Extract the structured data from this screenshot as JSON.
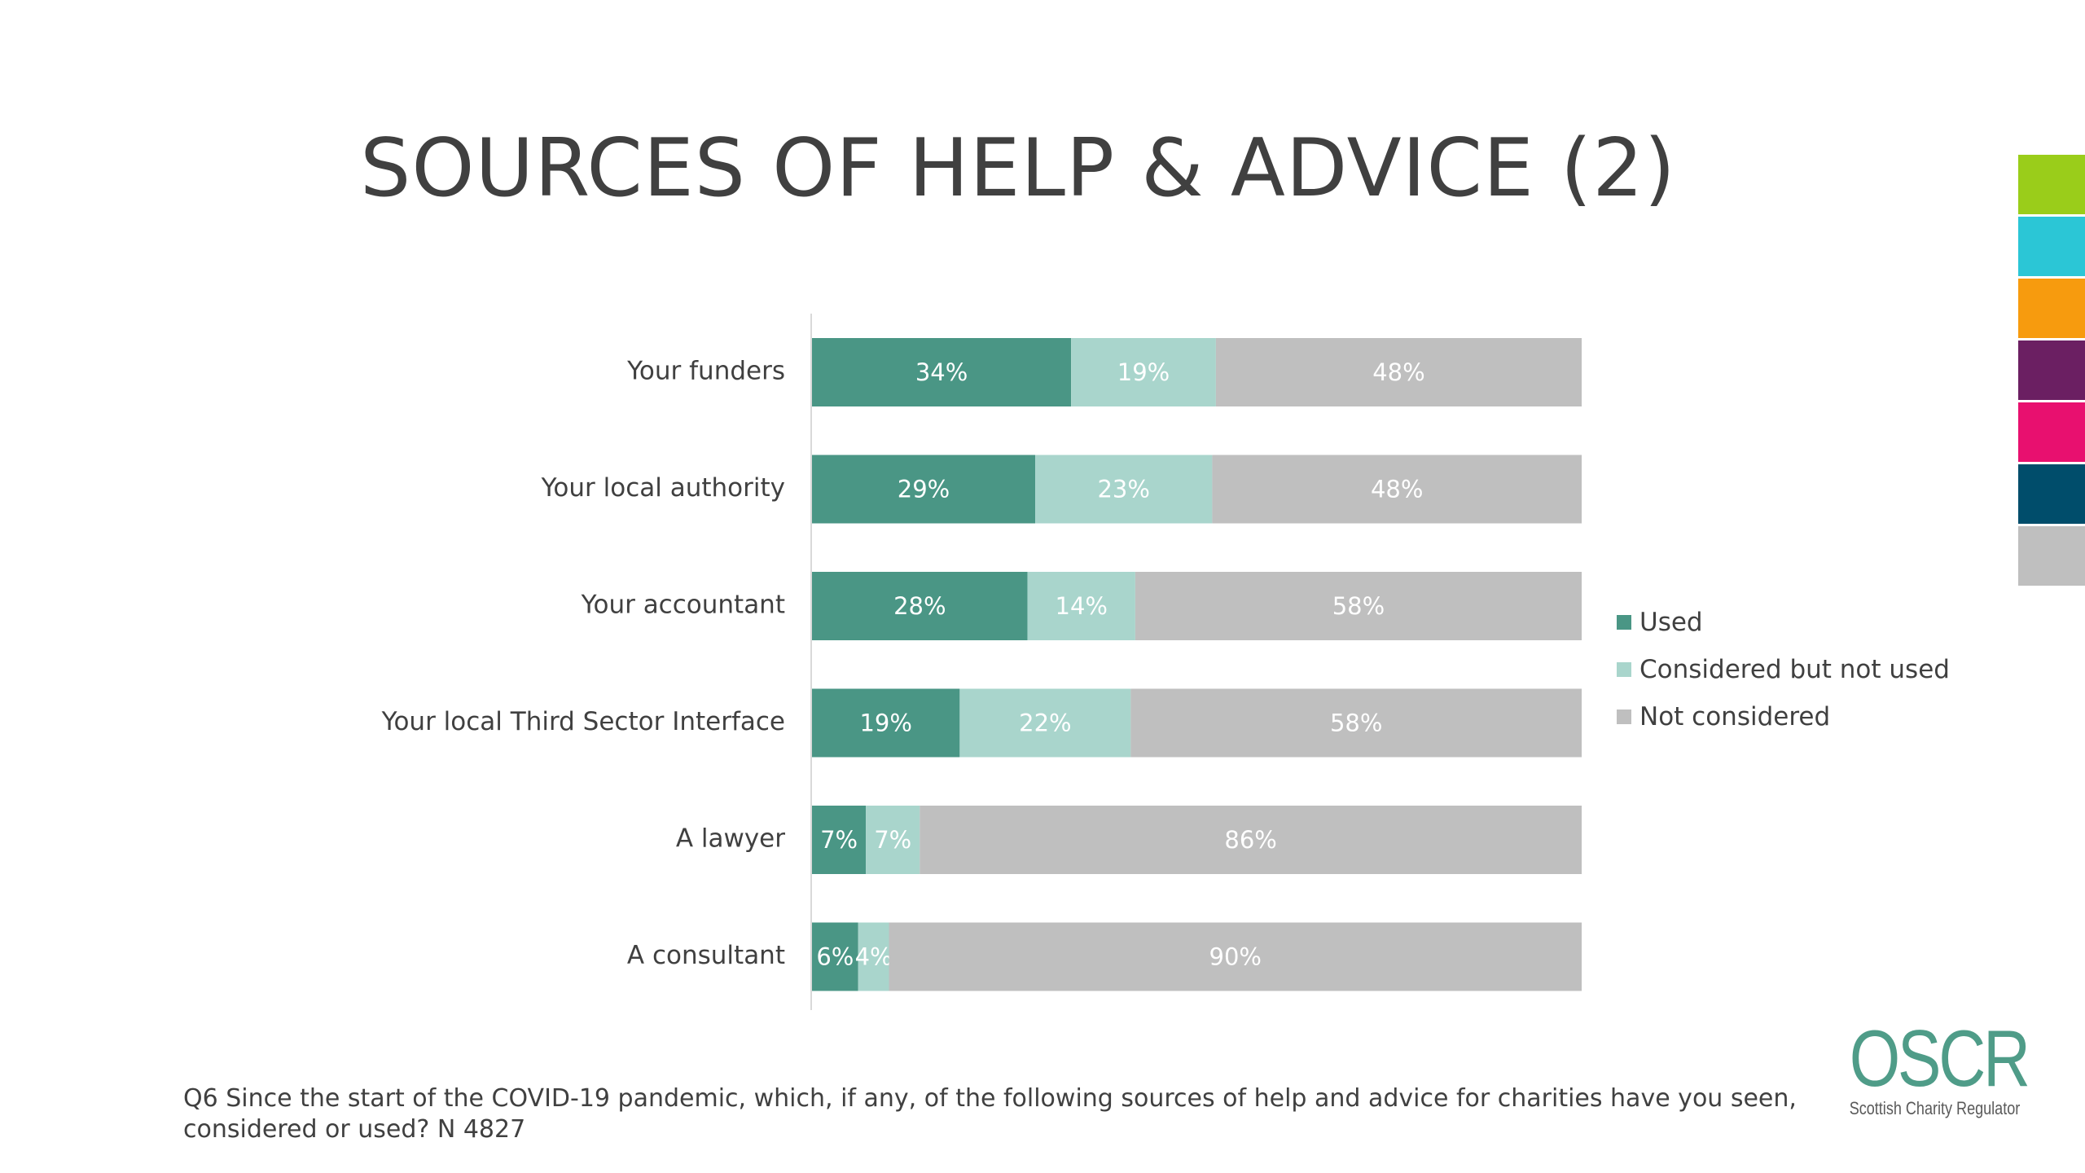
{
  "slide": {
    "title": "SOURCES OF HELP & ADVICE (2)",
    "footnote": "Q6 Since the start of the COVID-19 pandemic, which, if any, of the following sources of help and advice for charities have you seen, considered or used? N 4827",
    "logo_text": "OSCR",
    "logo_subtext": "Scottish Charity Regulator"
  },
  "colors": {
    "used": "#4a9685",
    "considered": "#a9d5cc",
    "not_considered": "#bfbfbf",
    "strip": [
      "#9acd1a",
      "#2bc6d6",
      "#f79b0e",
      "#6b1f62",
      "#e8106f",
      "#004d6b",
      "#bfbfbf"
    ]
  },
  "chart_data": {
    "type": "bar",
    "orientation": "horizontal",
    "stacked": true,
    "categories": [
      "Your funders",
      "Your local authority",
      "Your accountant",
      "Your local Third Sector Interface",
      "A lawyer",
      "A consultant"
    ],
    "series": [
      {
        "name": "Used",
        "values": [
          34,
          29,
          28,
          19,
          7,
          6
        ],
        "labels": [
          "34%",
          "29%",
          "28%",
          "19%",
          "7%",
          "6%"
        ]
      },
      {
        "name": "Considered but not used",
        "values": [
          19,
          23,
          14,
          22,
          7,
          4
        ],
        "labels": [
          "19%",
          "23%",
          "14%",
          "22%",
          "7%",
          "4%"
        ]
      },
      {
        "name": "Not considered",
        "values": [
          48,
          48,
          58,
          58,
          86,
          90
        ],
        "labels": [
          "48%",
          "48%",
          "58%",
          "58%",
          "86%",
          "90%"
        ]
      }
    ],
    "xlim": [
      0,
      100
    ],
    "legend_position": "right",
    "grid": false
  }
}
